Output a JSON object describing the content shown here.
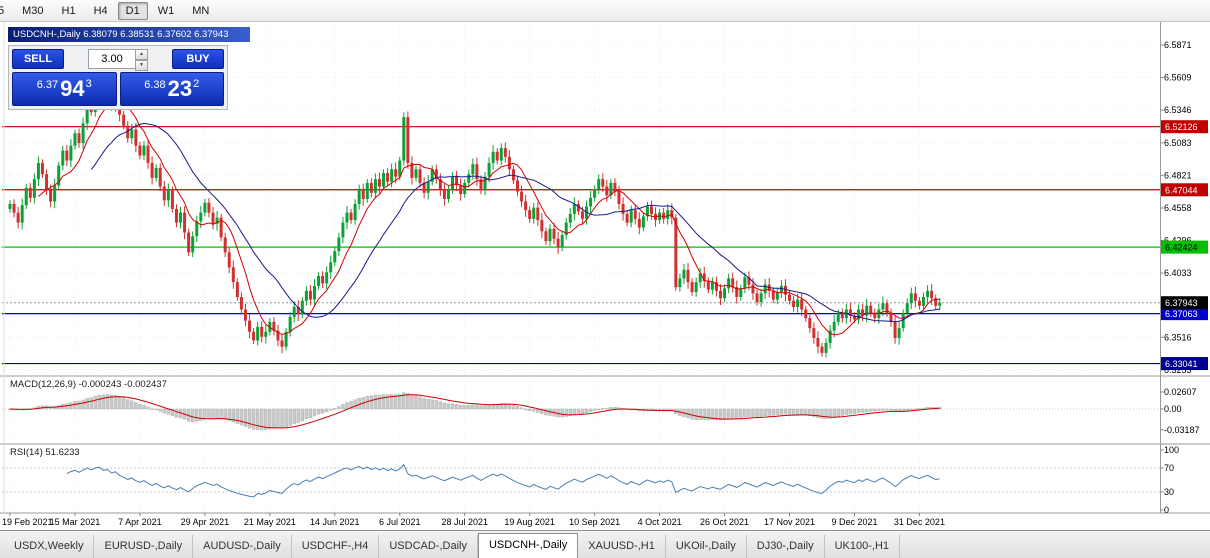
{
  "toolbar": {
    "timeframes": [
      "5",
      "M30",
      "H1",
      "H4",
      "D1",
      "W1",
      "MN"
    ],
    "active": "D1"
  },
  "chart_window": {
    "title": "USDCNH-,Daily  6.38079 6.38531 6.37602 6.37943",
    "trade_panel": {
      "sell_label": "SELL",
      "buy_label": "BUY",
      "volume": "3.00",
      "sell_price": {
        "small": "6.37",
        "big": "94",
        "sup": "3"
      },
      "buy_price": {
        "small": "6.38",
        "big": "23",
        "sup": "2"
      }
    }
  },
  "chart_data": {
    "type": "candlestick",
    "symbol": "USDCNH-",
    "timeframe": "Daily",
    "ohlc_display": {
      "open": "6.38079",
      "high": "6.38531",
      "low": "6.37602",
      "close": "6.37943"
    },
    "y_ticks": [
      "6.5871",
      "6.5609",
      "6.5346",
      "6.5083",
      "6.4821",
      "6.4558",
      "6.4296",
      "6.4033",
      "6.3516",
      "6.3253"
    ],
    "x_labels": [
      "19 Feb 2021",
      "15 Mar 2021",
      "7 Apr 2021",
      "29 Apr 2021",
      "21 May 2021",
      "14 Jun 2021",
      "6 Jul 2021",
      "28 Jul 2021",
      "19 Aug 2021",
      "10 Sep 2021",
      "4 Oct 2021",
      "26 Oct 2021",
      "17 Nov 2021",
      "9 Dec 2021",
      "31 Dec 2021"
    ],
    "bars_per_label": 16,
    "closes": [
      6.459,
      6.452,
      6.444,
      6.458,
      6.472,
      6.464,
      6.479,
      6.492,
      6.483,
      6.47,
      6.461,
      6.474,
      6.49,
      6.502,
      6.494,
      6.506,
      6.516,
      6.508,
      6.524,
      6.54,
      6.533,
      6.549,
      6.556,
      6.544,
      6.552,
      6.538,
      6.546,
      6.531,
      6.522,
      6.512,
      6.519,
      6.506,
      6.498,
      6.506,
      6.492,
      6.48,
      6.488,
      6.473,
      6.462,
      6.47,
      6.455,
      6.444,
      6.452,
      6.436,
      6.42,
      6.433,
      6.445,
      6.452,
      6.46,
      6.452,
      6.443,
      6.448,
      6.432,
      6.42,
      6.408,
      6.396,
      6.384,
      6.374,
      6.365,
      6.356,
      6.349,
      6.36,
      6.352,
      6.356,
      6.364,
      6.357,
      6.349,
      6.344,
      6.356,
      6.368,
      6.376,
      6.37,
      6.381,
      6.389,
      6.382,
      6.393,
      6.401,
      6.395,
      6.404,
      6.412,
      6.421,
      6.432,
      6.444,
      6.452,
      6.446,
      6.459,
      6.47,
      6.463,
      6.476,
      6.468,
      6.479,
      6.473,
      6.484,
      6.477,
      6.487,
      6.481,
      6.494,
      6.529,
      6.492,
      6.48,
      6.487,
      6.476,
      6.468,
      6.477,
      6.487,
      6.479,
      6.47,
      6.463,
      6.471,
      6.481,
      6.474,
      6.467,
      6.476,
      6.483,
      6.491,
      6.479,
      6.47,
      6.481,
      6.492,
      6.501,
      6.494,
      6.504,
      6.497,
      6.487,
      6.478,
      6.469,
      6.461,
      6.454,
      6.447,
      6.456,
      6.446,
      6.437,
      6.429,
      6.439,
      6.431,
      6.424,
      6.434,
      6.444,
      6.451,
      6.459,
      6.453,
      6.447,
      6.457,
      6.464,
      6.471,
      6.479,
      6.473,
      6.466,
      6.476,
      6.469,
      6.459,
      6.451,
      6.444,
      6.454,
      6.447,
      6.44,
      6.449,
      6.457,
      6.451,
      6.446,
      6.452,
      6.447,
      6.454,
      6.448,
      6.392,
      6.399,
      6.406,
      6.396,
      6.388,
      6.396,
      6.403,
      6.397,
      6.39,
      6.396,
      6.389,
      6.383,
      6.391,
      6.399,
      6.392,
      6.384,
      6.391,
      6.4,
      6.394,
      6.387,
      6.38,
      6.387,
      6.394,
      6.389,
      6.382,
      6.388,
      6.393,
      6.386,
      6.381,
      6.376,
      6.382,
      6.374,
      6.367,
      6.359,
      6.351,
      6.344,
      6.339,
      6.347,
      6.357,
      6.364,
      6.371,
      6.367,
      6.374,
      6.369,
      6.366,
      6.374,
      6.369,
      6.377,
      6.371,
      6.367,
      6.374,
      6.379,
      6.371,
      6.364,
      6.351,
      6.359,
      6.371,
      6.379,
      6.387,
      6.381,
      6.377,
      6.384,
      6.389,
      6.383,
      6.377,
      6.3794
    ],
    "hlines": [
      {
        "price": 6.52126,
        "label": "6.52126",
        "color": "#c00000",
        "text_color": "#ffffff"
      },
      {
        "price": 6.47044,
        "label": "6.47044",
        "color": "#c00000",
        "text_color": "#ffffff"
      },
      {
        "price": 6.42424,
        "label": "6.42424",
        "color": "#00c000",
        "text_color": "#000000"
      },
      {
        "price": 6.37063,
        "label": "6.37063",
        "color": "#0000cc",
        "text_color": "#ffffff"
      },
      {
        "price": 6.33041,
        "label": "6.33041",
        "color": "#000090",
        "text_color": "#ffffff"
      }
    ],
    "current_price": {
      "price": 6.37943,
      "label": "6.37943",
      "color": "#000000",
      "text_color": "#ffffff"
    },
    "ma": {
      "fast_period": 8,
      "slow_period": 21
    },
    "colors": {
      "up": "#0ba136",
      "down": "#d13030",
      "ma_fast": "#d40000",
      "ma_slow": "#1a1a8c",
      "macd_hist": "#c9c9c9",
      "macd_signal": "#cc0000",
      "rsi": "#4a7eb5"
    }
  },
  "macd_panel": {
    "label": "MACD(12,26,9) -0.000243 -0.002437",
    "ticks": [
      {
        "value": 0.02607,
        "label": "0.02607"
      },
      {
        "value": 0,
        "label": "0.00"
      },
      {
        "value": -0.03187,
        "label": "-0.03187"
      }
    ]
  },
  "rsi_panel": {
    "label": "RSI(14) 51.6233",
    "levels": [
      70,
      30
    ],
    "ticks": [
      {
        "value": 100,
        "label": "100"
      },
      {
        "value": 70,
        "label": "70"
      },
      {
        "value": 30,
        "label": "30"
      },
      {
        "value": 0,
        "label": "0"
      }
    ]
  },
  "tabs": {
    "items": [
      "USDX,Weekly",
      "EURUSD-,Daily",
      "AUDUSD-,Daily",
      "USDCHF-,H4",
      "USDCAD-,Daily",
      "USDCNH-,Daily",
      "XAUUSD-,H1",
      "UKOil-,Daily",
      "DJ30-,Daily",
      "UK100-,H1"
    ],
    "active_index": 5
  }
}
